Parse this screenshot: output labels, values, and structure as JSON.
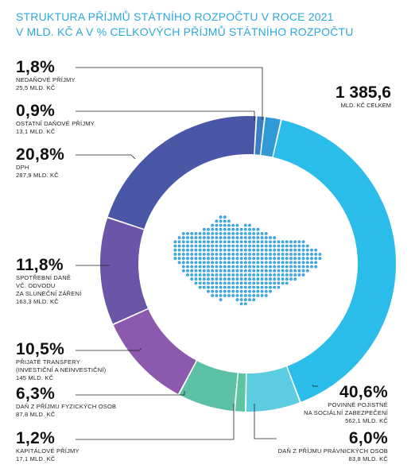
{
  "title": {
    "line1": "STRUKTURA PŘÍJMŮ STÁTNÍHO ROZPOČTU V ROCE 2021",
    "line2": "V MLD. KČ A V % CELKOVÝCH PŘÍJMŮ STÁTNÍHO ROZPOČTU"
  },
  "total": {
    "value": "1 385,6",
    "unit": "MLD. KČ CELKEM"
  },
  "chart_data": {
    "type": "pie",
    "title": "STRUKTURA PŘÍJMŮ STÁTNÍHO ROZPOČTU V ROCE 2021",
    "subtitle": "V MLD. KČ A V % CELKOVÝCH PŘÍJMŮ STÁTNÍHO ROZPOČTU",
    "donut": true,
    "total": 1385.6,
    "slices": [
      {
        "pct_label": "40,6%",
        "percent": 40.6,
        "name": [
          "POVINNÉ POJISTNÉ",
          "NA SOCIÁLNÍ ZABEZPEČENÍ"
        ],
        "value": 562.1,
        "value_label": "562,1 MLD. KČ",
        "color": "#2bbde9"
      },
      {
        "pct_label": "6,0%",
        "percent": 6.0,
        "name": [
          "DAŇ Z PŘÍJMU PRÁVNICKÝCH OSOB"
        ],
        "value": 83.8,
        "value_label": "83,8 MLD. KČ",
        "color": "#5ccce0"
      },
      {
        "pct_label": "1,2%",
        "percent": 1.2,
        "name": [
          "KAPITÁLOVÉ PŘÍJMY"
        ],
        "value": 17.1,
        "value_label": "17,1 MLD. KČ",
        "color": "#5bc5a4"
      },
      {
        "pct_label": "6,3%",
        "percent": 6.3,
        "name": [
          "DAŇ Z PŘÍJMU FYZICKÝCH OSOB"
        ],
        "value": 87.8,
        "value_label": "87,8 MLD. KČ",
        "color": "#5cc0a6"
      },
      {
        "pct_label": "10,5%",
        "percent": 10.5,
        "name": [
          "PŘIJATÉ TRANSFERY",
          "(INVESTIČNÍ A NEINVESTIČNÍ)"
        ],
        "value": 145,
        "value_label": "145 MLD. KČ",
        "color": "#8b5aae"
      },
      {
        "pct_label": "11,8%",
        "percent": 11.8,
        "name": [
          "SPOTŘEBNÍ DANĚ",
          "VČ. ODVODU",
          "ZA SLUNEČNÍ ZÁŘENÍ"
        ],
        "value": 163.3,
        "value_label": "163,3 MLD. KČ",
        "color": "#6a55a8"
      },
      {
        "pct_label": "20,8%",
        "percent": 20.8,
        "name": [
          "DPH"
        ],
        "value": 287.9,
        "value_label": "287,9 MLD. KČ",
        "color": "#4a56a6"
      },
      {
        "pct_label": "0,9%",
        "percent": 0.9,
        "name": [
          "OSTATNÍ DAŇOVÉ PŘÍJMY"
        ],
        "value": 13.1,
        "value_label": "13,1 MLD. KČ",
        "color": "#3e7fc4"
      },
      {
        "pct_label": "1,8%",
        "percent": 1.8,
        "name": [
          "NEDAŇOVÉ PŘÍJMY"
        ],
        "value": 25.5,
        "value_label": "25,5 MLD. KČ",
        "color": "#2f9ad6"
      }
    ]
  },
  "icons": {
    "center": "czech-map-dots-icon"
  }
}
